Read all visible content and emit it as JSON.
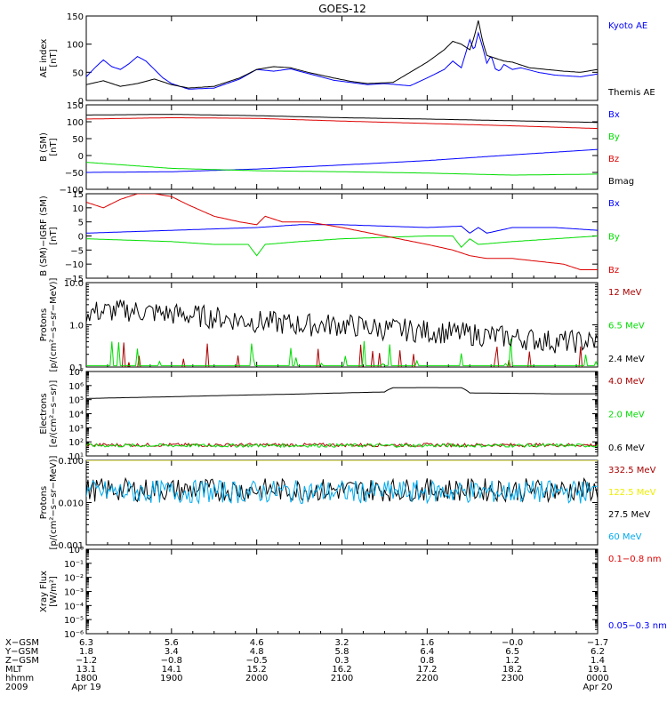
{
  "title": "GOES-12",
  "colors": {
    "black": "#000000",
    "blue": "#0000ff",
    "red": "#dd0000",
    "green": "#00dd00",
    "yellow": "#eeee00",
    "cyan": "#00aaee",
    "darkred": "#aa0000"
  },
  "chart_data": [
    {
      "id": "ae",
      "type": "line",
      "ylabel": [
        "AE index",
        "[nT]"
      ],
      "ylim": [
        0,
        150
      ],
      "yticks": [
        {
          "v": 0,
          "label": "0"
        },
        {
          "v": 50,
          "label": "50"
        },
        {
          "v": 100,
          "label": "100"
        },
        {
          "v": 150,
          "label": "150"
        }
      ],
      "series": [
        {
          "name": "Kyoto AE",
          "color": "#0000ff",
          "x": [
            0,
            0.1,
            0.2,
            0.3,
            0.4,
            0.5,
            0.6,
            0.7,
            0.9,
            1.0,
            1.2,
            1.5,
            1.8,
            2.0,
            2.2,
            2.4,
            2.6,
            2.9,
            3.1,
            3.3,
            3.5,
            3.8,
            4.0,
            4.2,
            4.3,
            4.4,
            4.5,
            4.55,
            4.6,
            4.65,
            4.7,
            4.75,
            4.8,
            4.85,
            4.9,
            5.0,
            5.1,
            5.3,
            5.5,
            5.8,
            6.0
          ],
          "y": [
            42,
            58,
            72,
            60,
            55,
            65,
            78,
            70,
            40,
            30,
            20,
            22,
            38,
            55,
            52,
            56,
            48,
            36,
            32,
            28,
            30,
            26,
            40,
            55,
            70,
            58,
            108,
            88,
            120,
            95,
            66,
            80,
            56,
            52,
            64,
            55,
            58,
            50,
            45,
            42,
            47
          ]
        },
        {
          "name": "Themis AE",
          "color": "#000000",
          "x": [
            0,
            0.2,
            0.4,
            0.6,
            0.8,
            1.0,
            1.2,
            1.5,
            1.8,
            2.0,
            2.2,
            2.4,
            2.6,
            2.9,
            3.1,
            3.3,
            3.6,
            3.8,
            4.0,
            4.2,
            4.3,
            4.4,
            4.5,
            4.55,
            4.6,
            4.65,
            4.7,
            4.8,
            4.9,
            5.0,
            5.2,
            5.4,
            5.6,
            5.8,
            6.0
          ],
          "y": [
            28,
            35,
            25,
            30,
            38,
            28,
            22,
            25,
            40,
            55,
            60,
            58,
            50,
            40,
            34,
            30,
            32,
            50,
            68,
            90,
            105,
            100,
            90,
            112,
            142,
            105,
            80,
            75,
            70,
            68,
            58,
            55,
            52,
            50,
            55
          ]
        }
      ]
    },
    {
      "id": "bsm",
      "type": "line",
      "ylabel": [
        "B (SM)",
        "[nT]"
      ],
      "ylim": [
        -100,
        150
      ],
      "yticks": [
        {
          "v": -100,
          "label": "−100"
        },
        {
          "v": -50,
          "label": "−50"
        },
        {
          "v": 0,
          "label": "0"
        },
        {
          "v": 50,
          "label": "50"
        },
        {
          "v": 100,
          "label": "100"
        },
        {
          "v": 150,
          "label": "150"
        }
      ],
      "series": [
        {
          "name": "Bx",
          "color": "#0000ff",
          "x": [
            0,
            1,
            2,
            3,
            4,
            5,
            6
          ],
          "y": [
            -50,
            -48,
            -40,
            -28,
            -15,
            2,
            18
          ]
        },
        {
          "name": "By",
          "color": "#00dd00",
          "x": [
            0,
            1,
            2,
            3,
            4,
            5,
            6
          ],
          "y": [
            -20,
            -38,
            -45,
            -48,
            -52,
            -58,
            -55
          ]
        },
        {
          "name": "Bz",
          "color": "#dd0000",
          "x": [
            0,
            1,
            2,
            3,
            4,
            5,
            6
          ],
          "y": [
            108,
            112,
            110,
            102,
            95,
            88,
            80
          ]
        },
        {
          "name": "Bmag",
          "color": "#000000",
          "x": [
            0,
            1,
            2,
            3,
            4,
            5,
            6
          ],
          "y": [
            120,
            122,
            118,
            112,
            108,
            103,
            98
          ]
        }
      ]
    },
    {
      "id": "bigrf",
      "type": "line",
      "ylabel": [
        "B (SM)−IGRF (SM)",
        "[nT]"
      ],
      "ylim": [
        -15,
        15
      ],
      "yticks": [
        {
          "v": -15,
          "label": "−15"
        },
        {
          "v": -10,
          "label": "−10"
        },
        {
          "v": -5,
          "label": "−5"
        },
        {
          "v": 0,
          "label": "0"
        },
        {
          "v": 5,
          "label": "5"
        },
        {
          "v": 10,
          "label": "10"
        },
        {
          "v": 15,
          "label": "15"
        }
      ],
      "series": [
        {
          "name": "Bx",
          "color": "#0000ff",
          "x": [
            0,
            0.5,
            1,
            1.5,
            2,
            2.5,
            3,
            3.5,
            4,
            4.4,
            4.5,
            4.6,
            4.7,
            5,
            5.5,
            6
          ],
          "y": [
            1,
            1.5,
            2,
            2.5,
            3,
            4,
            4,
            3.5,
            3,
            3.5,
            1,
            3,
            1,
            3,
            3,
            2
          ]
        },
        {
          "name": "By",
          "color": "#00dd00",
          "x": [
            0,
            0.5,
            1,
            1.5,
            1.9,
            2,
            2.1,
            2.5,
            3,
            3.5,
            4,
            4.3,
            4.4,
            4.5,
            4.6,
            5,
            5.5,
            6
          ],
          "y": [
            -1,
            -1.5,
            -2,
            -3,
            -3,
            -7,
            -3,
            -2,
            -1,
            -0.5,
            0,
            0,
            -4,
            -1,
            -3,
            -2,
            -1,
            0
          ]
        },
        {
          "name": "Bz",
          "color": "#dd0000",
          "x": [
            0,
            0.2,
            0.4,
            0.6,
            0.8,
            1.0,
            1.2,
            1.5,
            1.8,
            2.0,
            2.1,
            2.3,
            2.6,
            3.0,
            3.5,
            4.0,
            4.3,
            4.5,
            4.7,
            5.0,
            5.3,
            5.6,
            5.8,
            6.0
          ],
          "y": [
            12,
            10,
            13,
            15,
            15,
            14,
            11,
            7,
            5,
            4,
            7,
            5,
            5,
            3,
            0,
            -3,
            -5,
            -7,
            -8,
            -8,
            -9,
            -10,
            -12,
            -12
          ]
        }
      ]
    },
    {
      "id": "protons-low",
      "type": "line",
      "yscale": "log",
      "ylabel": [
        "Protons",
        "[p/(cm²−s−sr−MeV)]"
      ],
      "ylim": [
        0.1,
        10
      ],
      "yticks": [
        {
          "v": 0.1,
          "label": "0.1"
        },
        {
          "v": 1,
          "label": "1.0"
        },
        {
          "v": 10,
          "label": "10.0"
        }
      ],
      "series": [
        {
          "name": "12 MeV",
          "color": "#aa0000",
          "noise": "spiky-floor",
          "x": [
            0,
            6
          ],
          "y": [
            0.1,
            0.1
          ]
        },
        {
          "name": "6.5 MeV",
          "color": "#00dd00",
          "noise": "spiky-floor",
          "x": [
            0,
            6
          ],
          "y": [
            0.12,
            0.12
          ]
        },
        {
          "name": "2.4 MeV",
          "color": "#000000",
          "noise": "heavy",
          "x": [
            0,
            0.5,
            1,
            1.5,
            2,
            2.5,
            3,
            3.5,
            4,
            4.5,
            5,
            5.5,
            6
          ],
          "y": [
            2.0,
            2.2,
            1.8,
            1.5,
            1.2,
            1.0,
            1.0,
            0.8,
            0.7,
            0.6,
            0.5,
            0.4,
            0.4
          ]
        }
      ]
    },
    {
      "id": "electrons",
      "type": "line",
      "yscale": "log",
      "ylabel": [
        "Electrons",
        "[e/(cm²−s−sr)]"
      ],
      "ylim": [
        10,
        10000000
      ],
      "yticks": [
        {
          "v": 10,
          "label": "10¹"
        },
        {
          "v": 100,
          "label": "10²"
        },
        {
          "v": 1000,
          "label": "10³"
        },
        {
          "v": 10000,
          "label": "10⁴"
        },
        {
          "v": 100000,
          "label": "10⁵"
        },
        {
          "v": 1000000,
          "label": "10⁶"
        },
        {
          "v": 10000000,
          "label": "10⁷"
        }
      ],
      "series": [
        {
          "name": "4.0 MeV",
          "color": "#aa0000",
          "noise": "light",
          "x": [
            0,
            6
          ],
          "y": [
            60,
            60
          ]
        },
        {
          "name": "2.0 MeV",
          "color": "#00dd00",
          "noise": "light",
          "x": [
            0,
            6
          ],
          "y": [
            55,
            55
          ]
        },
        {
          "name": "0.6 MeV",
          "color": "#000000",
          "x": [
            0,
            0.5,
            1,
            1.5,
            2,
            2.5,
            3,
            3.5,
            3.6,
            4.0,
            4.4,
            4.5,
            5,
            5.5,
            6
          ],
          "y": [
            120000,
            140000,
            160000,
            190000,
            220000,
            250000,
            300000,
            350000,
            700000,
            720000,
            700000,
            300000,
            280000,
            260000,
            260000
          ]
        }
      ]
    },
    {
      "id": "protons-high",
      "type": "line",
      "yscale": "log",
      "ylabel": [
        "Protons",
        "[p/(cm²−s−sr−MeV)]"
      ],
      "ylim": [
        0.001,
        0.1
      ],
      "yticks": [
        {
          "v": 0.001,
          "label": "0.001"
        },
        {
          "v": 0.01,
          "label": "0.010"
        },
        {
          "v": 0.1,
          "label": "0.100"
        }
      ],
      "series": [
        {
          "name": "332.5 MeV",
          "color": "#aa0000",
          "x": [
            0,
            6
          ],
          "y": [
            0.1,
            0.1
          ]
        },
        {
          "name": "122.5 MeV",
          "color": "#eeee00",
          "x": [
            0,
            6
          ],
          "y": [
            0.1,
            0.1
          ]
        },
        {
          "name": "27.5 MeV",
          "color": "#000000",
          "noise": "heavy",
          "x": [
            0,
            6
          ],
          "y": [
            0.02,
            0.02
          ]
        },
        {
          "name": "60 MeV",
          "color": "#00aaee",
          "noise": "heavy",
          "x": [
            0,
            6
          ],
          "y": [
            0.018,
            0.018
          ]
        }
      ]
    },
    {
      "id": "xray",
      "type": "line",
      "yscale": "log",
      "ylabel": [
        "Xray Flux",
        "[W/m²]"
      ],
      "ylim": [
        1e-06,
        1
      ],
      "yticks": [
        {
          "v": 1e-06,
          "label": "10⁻⁶"
        },
        {
          "v": 1e-05,
          "label": "10⁻⁵"
        },
        {
          "v": 0.0001,
          "label": "10⁻⁴"
        },
        {
          "v": 0.001,
          "label": "10⁻³"
        },
        {
          "v": 0.01,
          "label": "10⁻²"
        },
        {
          "v": 0.1,
          "label": "10⁻¹"
        },
        {
          "v": 1,
          "label": "10⁰"
        }
      ],
      "series": [
        {
          "name": "0.1−0.8 nm",
          "color": "#dd0000",
          "x": [],
          "y": []
        },
        {
          "name": "0.05−0.3 nm",
          "color": "#0000ff",
          "x": [],
          "y": []
        }
      ]
    }
  ],
  "bottom_axis": {
    "row_labels": [
      "X−GSM",
      "Y−GSM",
      "Z−GSM",
      "MLT",
      "hhmm",
      "2009"
    ],
    "ticks": [
      {
        "values": [
          "6.3",
          "1.8",
          "−1.2",
          "13.1",
          "1800",
          "Apr 19"
        ]
      },
      {
        "values": [
          "5.6",
          "3.4",
          "−0.8",
          "14.1",
          "1900",
          ""
        ]
      },
      {
        "values": [
          "4.6",
          "4.8",
          "−0.5",
          "15.2",
          "2000",
          ""
        ]
      },
      {
        "values": [
          "3.2",
          "5.8",
          "0.3",
          "16.2",
          "2100",
          ""
        ]
      },
      {
        "values": [
          "1.6",
          "6.4",
          "0.8",
          "17.2",
          "2200",
          ""
        ]
      },
      {
        "values": [
          "−0.0",
          "6.5",
          "1.2",
          "18.2",
          "2300",
          ""
        ]
      },
      {
        "values": [
          "−1.7",
          "6.2",
          "1.4",
          "19.1",
          "0000",
          "Apr 20"
        ]
      }
    ]
  }
}
